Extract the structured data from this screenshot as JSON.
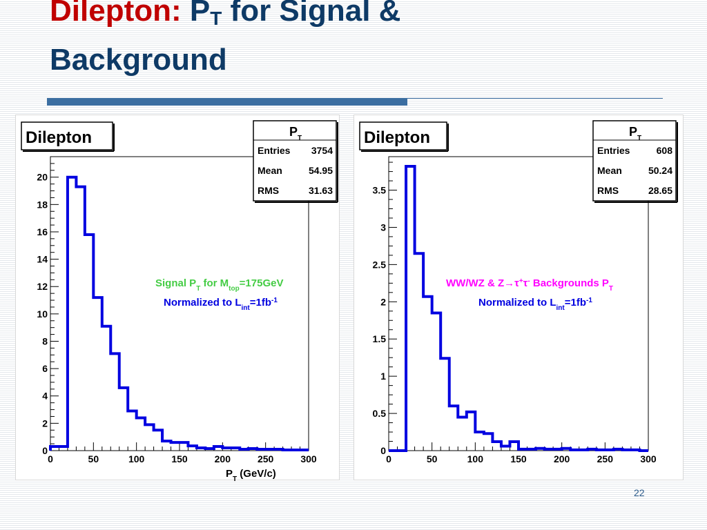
{
  "slide": {
    "title_part1": "Dilepton:",
    "title_part2": " P",
    "title_part2_sub": "T",
    "title_part3": " for Signal &",
    "title_line2": "Background",
    "number": "22"
  },
  "colors": {
    "title_accent": "#c00000",
    "title": "#0e3a66",
    "histogram": "#0000e0",
    "signal_label": "#44cc44",
    "background_label": "#ff00ff",
    "normalized_label": "#0000e0",
    "rule": "#3b6ea1"
  },
  "chart_data": [
    {
      "type": "bar",
      "style": "step-histogram",
      "title": "Dilepton",
      "stats": {
        "header": "P",
        "header_sub": "T",
        "rows": [
          {
            "label": "Entries",
            "value": "3754"
          },
          {
            "label": "Mean",
            "value": "54.95"
          },
          {
            "label": "RMS",
            "value": "31.63"
          }
        ]
      },
      "xlabel": "P",
      "xlabel_sub": "T",
      "xlabel_suffix": " (GeV/c)",
      "xlim": [
        0,
        300
      ],
      "ylim": [
        0,
        21.5
      ],
      "xticks": [
        0,
        50,
        100,
        150,
        200,
        250,
        300
      ],
      "xtick_labels": [
        "0",
        "50",
        "100",
        "150",
        "200",
        "250",
        "300"
      ],
      "yticks": [
        0,
        2,
        4,
        6,
        8,
        10,
        12,
        14,
        16,
        18,
        20
      ],
      "ytick_labels": [
        "0",
        "2",
        "4",
        "6",
        "8",
        "10",
        "12",
        "14",
        "16",
        "18",
        "20"
      ],
      "bin_width": 10,
      "bin_edges_start": 0,
      "values": [
        0.3,
        0.3,
        20.0,
        19.3,
        15.8,
        11.2,
        9.1,
        7.1,
        4.6,
        2.9,
        2.4,
        1.9,
        1.5,
        0.7,
        0.6,
        0.6,
        0.35,
        0.2,
        0.15,
        0.3,
        0.2,
        0.2,
        0.1,
        0.15,
        0.1,
        0.1,
        0.1,
        0.05,
        0.05,
        0.05
      ],
      "annotation_line1": {
        "parts": [
          {
            "text": "Signal P",
            "sub": false
          },
          {
            "text": "T",
            "sub": true
          },
          {
            "text": " for M",
            "sub": false
          },
          {
            "text": "top",
            "sub": true
          },
          {
            "text": "=175GeV",
            "sub": false
          }
        ]
      },
      "annotation_line2": {
        "parts": [
          {
            "text": "Normalized to L",
            "sub": false
          },
          {
            "text": "int",
            "sub": true
          },
          {
            "text": "=1fb",
            "sub": false
          },
          {
            "text": "-1",
            "sup": true
          }
        ]
      }
    },
    {
      "type": "bar",
      "style": "step-histogram",
      "title": "Dilepton",
      "stats": {
        "header": "P",
        "header_sub": "T",
        "rows": [
          {
            "label": "Entries",
            "value": "608"
          },
          {
            "label": "Mean",
            "value": "50.24"
          },
          {
            "label": "RMS",
            "value": "28.65"
          }
        ]
      },
      "xlabel": "",
      "xlim": [
        0,
        300
      ],
      "ylim": [
        0,
        3.95
      ],
      "xticks": [
        0,
        50,
        100,
        150,
        200,
        250,
        300
      ],
      "xtick_labels": [
        "0",
        "50",
        "100",
        "150",
        "200",
        "250",
        "300"
      ],
      "yticks": [
        0,
        0.5,
        1,
        1.5,
        2,
        2.5,
        3,
        3.5
      ],
      "ytick_labels": [
        "0",
        "0.5",
        "1",
        "1.5",
        "2",
        "2.5",
        "3",
        "3.5"
      ],
      "bin_width": 10,
      "bin_edges_start": 0,
      "values": [
        0.0,
        0.0,
        3.82,
        2.65,
        2.07,
        1.85,
        1.24,
        0.6,
        0.45,
        0.52,
        0.25,
        0.23,
        0.12,
        0.06,
        0.12,
        0.02,
        0.02,
        0.03,
        0.02,
        0.02,
        0.03,
        0.01,
        0.01,
        0.02,
        0.01,
        0.01,
        0.02,
        0.01,
        0.01,
        0.0
      ],
      "annotation_line1": {
        "parts": [
          {
            "text": "WW/WZ & Z→τ",
            "sub": false
          },
          {
            "text": "+",
            "sup": true
          },
          {
            "text": "τ",
            "sub": false
          },
          {
            "text": "-",
            "sup": true
          },
          {
            "text": " Backgrounds P",
            "sub": false
          },
          {
            "text": "T",
            "sub": true
          }
        ]
      },
      "annotation_line2": {
        "parts": [
          {
            "text": "Normalized to L",
            "sub": false
          },
          {
            "text": "int",
            "sub": true
          },
          {
            "text": "=1fb",
            "sub": false
          },
          {
            "text": "-1",
            "sup": true
          }
        ]
      }
    }
  ]
}
